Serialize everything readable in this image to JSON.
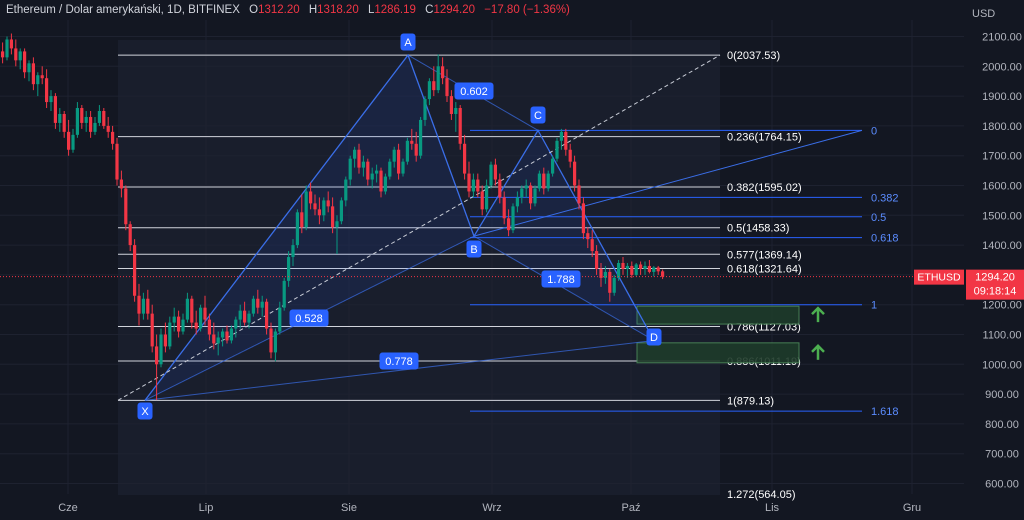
{
  "header": {
    "symbol_title": "Ethereum / Dolar amerykański, 1D, BITFINEX",
    "o_label": "O",
    "o_value": "1312.20",
    "h_label": "H",
    "h_value": "1318.20",
    "l_label": "L",
    "l_value": "1286.19",
    "c_label": "C",
    "c_value": "1294.20",
    "change": "−17.80 (−1.36%)"
  },
  "colors": {
    "up": "#089981",
    "down": "#f23645",
    "fib_white": "#d1d4dc",
    "fib_blue": "#2962ff",
    "label_blue": "#2962ff",
    "zone": "#1e3b2a",
    "zone_border": "#4c8a5a",
    "arrow": "#4caf50",
    "price_tag": "#f23645"
  },
  "chart_data": {
    "type": "candlestick",
    "currency_label": "USD",
    "y_ticks": [
      "2100.00",
      "2000.00",
      "1900.00",
      "1800.00",
      "1700.00",
      "1600.00",
      "1500.00",
      "1400.00",
      "1300.00",
      "1200.00",
      "1100.00",
      "1000.00",
      "900.00",
      "800.00",
      "700.00",
      "600.00"
    ],
    "y_tick_values": [
      2100,
      2000,
      1900,
      1800,
      1700,
      1600,
      1500,
      1400,
      1300,
      1200,
      1100,
      1000,
      900,
      800,
      700,
      600
    ],
    "x_ticks": [
      "Cze",
      "Lip",
      "Sie",
      "Wrz",
      "Paź",
      "Lis",
      "Gru"
    ],
    "ylim": [
      555,
      2145
    ],
    "last_price": {
      "symbol": "ETHUSD",
      "price": "1294.20",
      "countdown": "09:18:14",
      "value": 1294.2
    },
    "pattern_points": [
      {
        "label": "X",
        "price": 879.13
      },
      {
        "label": "A",
        "price": 2037.53
      },
      {
        "label": "B",
        "price": 1430
      },
      {
        "label": "C",
        "price": 1785
      },
      {
        "label": "D",
        "price": 1080
      }
    ],
    "pattern_ratios": [
      "0.602",
      "0.528",
      "0.778",
      "1.788"
    ],
    "fib_retracement": [
      {
        "label": "0(2037.53)",
        "price": 2037.53
      },
      {
        "label": "0.236(1764.15)",
        "price": 1764.15
      },
      {
        "label": "0.382(1595.02)",
        "price": 1595.02
      },
      {
        "label": "0.5(1458.33)",
        "price": 1458.33
      },
      {
        "label": "0.577(1369.14)",
        "price": 1369.14
      },
      {
        "label": "0.618(1321.64)",
        "price": 1321.64
      },
      {
        "label": "0.786(1127.03)",
        "price": 1127.03
      },
      {
        "label": "0.886(1011.19)",
        "price": 1011.19
      },
      {
        "label": "1(879.13)",
        "price": 879.13
      },
      {
        "label": "1.272(564.05)",
        "price": 564.05
      }
    ],
    "fib_extension": [
      {
        "label": "0",
        "price": 1785
      },
      {
        "label": "0.382",
        "price": 1560
      },
      {
        "label": "0.5",
        "price": 1495
      },
      {
        "label": "0.618",
        "price": 1425
      },
      {
        "label": "1",
        "price": 1200
      },
      {
        "label": "1.618",
        "price": 843
      }
    ],
    "target_zones": [
      {
        "top": 1195,
        "bottom": 1135
      },
      {
        "top": 1072,
        "bottom": 1005
      }
    ],
    "candles": [
      [
        2050,
        2080,
        2010,
        2030
      ],
      [
        2030,
        2100,
        2020,
        2090
      ],
      [
        2090,
        2110,
        2040,
        2060
      ],
      [
        2060,
        2090,
        2000,
        2020
      ],
      [
        2020,
        2060,
        1990,
        2050
      ],
      [
        2050,
        2060,
        1960,
        1980
      ],
      [
        1980,
        2020,
        1950,
        2010
      ],
      [
        2010,
        2030,
        1920,
        1940
      ],
      [
        1940,
        1980,
        1900,
        1970
      ],
      [
        1970,
        2000,
        1940,
        1960
      ],
      [
        1960,
        1990,
        1860,
        1880
      ],
      [
        1880,
        1920,
        1850,
        1900
      ],
      [
        1900,
        1910,
        1790,
        1810
      ],
      [
        1810,
        1860,
        1780,
        1840
      ],
      [
        1840,
        1850,
        1760,
        1780
      ],
      [
        1780,
        1820,
        1700,
        1720
      ],
      [
        1720,
        1790,
        1710,
        1770
      ],
      [
        1770,
        1880,
        1760,
        1860
      ],
      [
        1860,
        1870,
        1790,
        1810
      ],
      [
        1810,
        1850,
        1780,
        1830
      ],
      [
        1830,
        1850,
        1760,
        1780
      ],
      [
        1780,
        1830,
        1770,
        1810
      ],
      [
        1810,
        1870,
        1800,
        1850
      ],
      [
        1850,
        1860,
        1790,
        1800
      ],
      [
        1800,
        1830,
        1760,
        1780
      ],
      [
        1780,
        1800,
        1720,
        1740
      ],
      [
        1740,
        1760,
        1600,
        1620
      ],
      [
        1620,
        1650,
        1560,
        1590
      ],
      [
        1590,
        1600,
        1450,
        1470
      ],
      [
        1470,
        1480,
        1380,
        1400
      ],
      [
        1400,
        1420,
        1210,
        1230
      ],
      [
        1230,
        1270,
        1130,
        1170
      ],
      [
        1170,
        1240,
        1150,
        1220
      ],
      [
        1220,
        1250,
        1150,
        1170
      ],
      [
        1170,
        1200,
        1040,
        1060
      ],
      [
        1060,
        1100,
        880,
        1000
      ],
      [
        1000,
        1120,
        990,
        1100
      ],
      [
        1100,
        1140,
        1040,
        1060
      ],
      [
        1060,
        1160,
        1050,
        1140
      ],
      [
        1140,
        1190,
        1110,
        1160
      ],
      [
        1160,
        1180,
        1090,
        1110
      ],
      [
        1110,
        1170,
        1100,
        1150
      ],
      [
        1150,
        1240,
        1140,
        1220
      ],
      [
        1220,
        1230,
        1120,
        1140
      ],
      [
        1140,
        1180,
        1100,
        1120
      ],
      [
        1120,
        1200,
        1110,
        1190
      ],
      [
        1190,
        1230,
        1130,
        1150
      ],
      [
        1150,
        1170,
        1080,
        1100
      ],
      [
        1100,
        1140,
        1050,
        1070
      ],
      [
        1070,
        1110,
        1030,
        1090
      ],
      [
        1090,
        1120,
        1060,
        1110
      ],
      [
        1110,
        1130,
        1070,
        1080
      ],
      [
        1080,
        1130,
        1070,
        1120
      ],
      [
        1120,
        1160,
        1090,
        1150
      ],
      [
        1150,
        1200,
        1120,
        1180
      ],
      [
        1180,
        1210,
        1130,
        1140
      ],
      [
        1140,
        1180,
        1120,
        1170
      ],
      [
        1170,
        1230,
        1160,
        1220
      ],
      [
        1220,
        1250,
        1170,
        1190
      ],
      [
        1190,
        1230,
        1160,
        1210
      ],
      [
        1210,
        1220,
        1100,
        1120
      ],
      [
        1120,
        1140,
        1020,
        1040
      ],
      [
        1040,
        1120,
        1010,
        1110
      ],
      [
        1110,
        1210,
        1100,
        1190
      ],
      [
        1190,
        1290,
        1180,
        1280
      ],
      [
        1280,
        1380,
        1260,
        1360
      ],
      [
        1360,
        1420,
        1330,
        1400
      ],
      [
        1400,
        1520,
        1390,
        1510
      ],
      [
        1510,
        1570,
        1440,
        1460
      ],
      [
        1460,
        1600,
        1450,
        1580
      ],
      [
        1580,
        1610,
        1520,
        1540
      ],
      [
        1540,
        1570,
        1500,
        1520
      ],
      [
        1520,
        1560,
        1470,
        1500
      ],
      [
        1500,
        1560,
        1480,
        1550
      ],
      [
        1550,
        1580,
        1510,
        1530
      ],
      [
        1530,
        1560,
        1440,
        1460
      ],
      [
        1460,
        1500,
        1370,
        1480
      ],
      [
        1480,
        1560,
        1470,
        1550
      ],
      [
        1550,
        1630,
        1530,
        1620
      ],
      [
        1620,
        1700,
        1600,
        1690
      ],
      [
        1690,
        1730,
        1660,
        1720
      ],
      [
        1720,
        1740,
        1640,
        1660
      ],
      [
        1660,
        1700,
        1630,
        1680
      ],
      [
        1680,
        1690,
        1600,
        1620
      ],
      [
        1620,
        1660,
        1590,
        1640
      ],
      [
        1640,
        1670,
        1610,
        1650
      ],
      [
        1650,
        1660,
        1560,
        1580
      ],
      [
        1580,
        1640,
        1570,
        1630
      ],
      [
        1630,
        1690,
        1620,
        1680
      ],
      [
        1680,
        1730,
        1660,
        1720
      ],
      [
        1720,
        1740,
        1620,
        1640
      ],
      [
        1640,
        1690,
        1630,
        1680
      ],
      [
        1680,
        1760,
        1670,
        1750
      ],
      [
        1750,
        1790,
        1720,
        1740
      ],
      [
        1740,
        1780,
        1680,
        1700
      ],
      [
        1700,
        1830,
        1690,
        1820
      ],
      [
        1820,
        1900,
        1800,
        1890
      ],
      [
        1890,
        1960,
        1870,
        1950
      ],
      [
        1950,
        2000,
        1900,
        1920
      ],
      [
        1920,
        2040,
        1910,
        2000
      ],
      [
        2000,
        2030,
        1940,
        1960
      ],
      [
        1960,
        1990,
        1880,
        1900
      ],
      [
        1900,
        1920,
        1820,
        1840
      ],
      [
        1840,
        1880,
        1780,
        1860
      ],
      [
        1860,
        1870,
        1720,
        1740
      ],
      [
        1740,
        1770,
        1620,
        1640
      ],
      [
        1640,
        1680,
        1560,
        1580
      ],
      [
        1580,
        1640,
        1560,
        1620
      ],
      [
        1620,
        1640,
        1560,
        1580
      ],
      [
        1580,
        1600,
        1500,
        1520
      ],
      [
        1520,
        1620,
        1510,
        1600
      ],
      [
        1600,
        1680,
        1590,
        1670
      ],
      [
        1670,
        1690,
        1600,
        1620
      ],
      [
        1620,
        1640,
        1540,
        1560
      ],
      [
        1560,
        1580,
        1470,
        1490
      ],
      [
        1490,
        1520,
        1430,
        1450
      ],
      [
        1450,
        1540,
        1440,
        1530
      ],
      [
        1530,
        1580,
        1510,
        1560
      ],
      [
        1560,
        1600,
        1540,
        1590
      ],
      [
        1590,
        1620,
        1560,
        1600
      ],
      [
        1600,
        1610,
        1520,
        1540
      ],
      [
        1540,
        1600,
        1530,
        1590
      ],
      [
        1590,
        1650,
        1580,
        1640
      ],
      [
        1640,
        1660,
        1570,
        1590
      ],
      [
        1590,
        1650,
        1580,
        1640
      ],
      [
        1640,
        1700,
        1630,
        1690
      ],
      [
        1690,
        1760,
        1680,
        1750
      ],
      [
        1750,
        1790,
        1720,
        1780
      ],
      [
        1780,
        1790,
        1700,
        1720
      ],
      [
        1720,
        1740,
        1660,
        1680
      ],
      [
        1680,
        1700,
        1580,
        1600
      ],
      [
        1600,
        1620,
        1520,
        1540
      ],
      [
        1540,
        1560,
        1420,
        1440
      ],
      [
        1440,
        1460,
        1390,
        1420
      ],
      [
        1420,
        1450,
        1360,
        1380
      ],
      [
        1380,
        1400,
        1300,
        1320
      ],
      [
        1320,
        1340,
        1260,
        1290
      ],
      [
        1290,
        1330,
        1270,
        1310
      ],
      [
        1310,
        1320,
        1210,
        1240
      ],
      [
        1240,
        1300,
        1230,
        1290
      ],
      [
        1290,
        1350,
        1280,
        1340
      ],
      [
        1340,
        1360,
        1300,
        1320
      ],
      [
        1320,
        1340,
        1290,
        1330
      ],
      [
        1330,
        1345,
        1290,
        1300
      ],
      [
        1300,
        1340,
        1295,
        1335
      ],
      [
        1335,
        1345,
        1300,
        1320
      ],
      [
        1320,
        1345,
        1300,
        1330
      ],
      [
        1330,
        1350,
        1305,
        1310
      ],
      [
        1310,
        1330,
        1295,
        1325
      ],
      [
        1325,
        1330,
        1300,
        1312
      ],
      [
        1312,
        1318,
        1286,
        1294
      ]
    ]
  }
}
